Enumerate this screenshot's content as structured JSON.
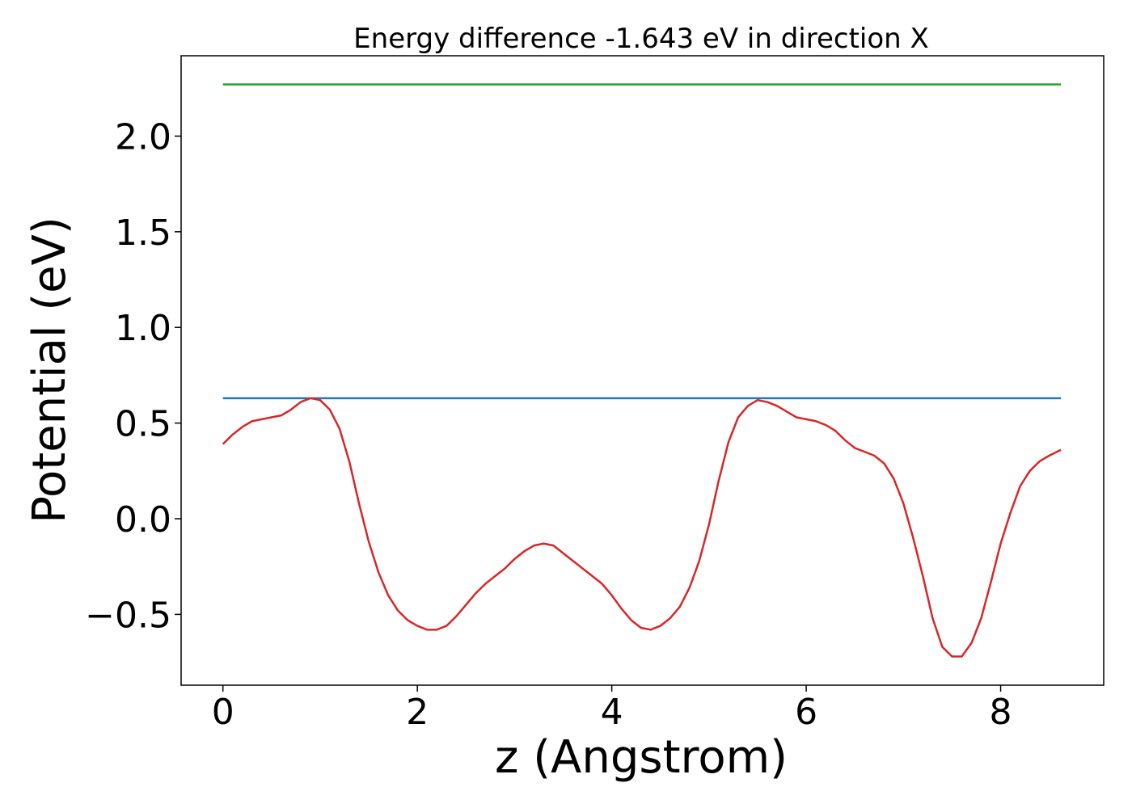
{
  "chart_data": {
    "type": "line",
    "title": "Energy difference -1.643 eV in direction X",
    "xlabel": "z (Angstrom)",
    "ylabel": "Potential (eV)",
    "xlim": [
      -0.43,
      9.06
    ],
    "ylim": [
      -0.87,
      2.42
    ],
    "xticks": [
      0,
      2,
      4,
      6,
      8
    ],
    "xtick_labels": [
      "0",
      "2",
      "4",
      "6",
      "8"
    ],
    "yticks": [
      -0.5,
      0.0,
      0.5,
      1.0,
      1.5,
      2.0
    ],
    "ytick_labels": [
      "−0.5",
      "0.0",
      "0.5",
      "1.0",
      "1.5",
      "2.0"
    ],
    "grid": false,
    "series": [
      {
        "color": "#2ca02c",
        "x": [
          0,
          8.62
        ],
        "y": [
          2.27,
          2.27
        ]
      },
      {
        "color": "#1f77b4",
        "x": [
          0,
          8.62
        ],
        "y": [
          0.63,
          0.63
        ]
      },
      {
        "color": "#d62728",
        "x": [
          0,
          0.1,
          0.2,
          0.3,
          0.4,
          0.5,
          0.6,
          0.7,
          0.8,
          0.9,
          1.0,
          1.1,
          1.2,
          1.3,
          1.4,
          1.5,
          1.6,
          1.7,
          1.8,
          1.9,
          2.0,
          2.1,
          2.2,
          2.3,
          2.4,
          2.5,
          2.6,
          2.7,
          2.8,
          2.9,
          3.0,
          3.1,
          3.2,
          3.3,
          3.4,
          3.5,
          3.6,
          3.7,
          3.8,
          3.9,
          4.0,
          4.1,
          4.2,
          4.3,
          4.4,
          4.5,
          4.6,
          4.7,
          4.8,
          4.9,
          5.0,
          5.1,
          5.2,
          5.3,
          5.4,
          5.5,
          5.6,
          5.7,
          5.8,
          5.9,
          6.0,
          6.1,
          6.2,
          6.3,
          6.4,
          6.5,
          6.6,
          6.7,
          6.8,
          6.9,
          7.0,
          7.1,
          7.2,
          7.3,
          7.4,
          7.5,
          7.6,
          7.7,
          7.8,
          7.9,
          8.0,
          8.1,
          8.2,
          8.3,
          8.4,
          8.5,
          8.62
        ],
        "y": [
          0.39,
          0.44,
          0.48,
          0.51,
          0.52,
          0.53,
          0.54,
          0.57,
          0.61,
          0.63,
          0.62,
          0.57,
          0.47,
          0.3,
          0.08,
          -0.12,
          -0.28,
          -0.4,
          -0.48,
          -0.53,
          -0.56,
          -0.58,
          -0.58,
          -0.56,
          -0.51,
          -0.45,
          -0.39,
          -0.34,
          -0.3,
          -0.26,
          -0.21,
          -0.17,
          -0.14,
          -0.13,
          -0.14,
          -0.18,
          -0.22,
          -0.26,
          -0.3,
          -0.34,
          -0.4,
          -0.47,
          -0.53,
          -0.57,
          -0.58,
          -0.56,
          -0.52,
          -0.46,
          -0.36,
          -0.22,
          -0.03,
          0.2,
          0.4,
          0.53,
          0.59,
          0.62,
          0.61,
          0.59,
          0.56,
          0.53,
          0.52,
          0.51,
          0.49,
          0.46,
          0.41,
          0.37,
          0.35,
          0.33,
          0.29,
          0.21,
          0.08,
          -0.1,
          -0.3,
          -0.52,
          -0.67,
          -0.72,
          -0.72,
          -0.65,
          -0.52,
          -0.33,
          -0.13,
          0.03,
          0.17,
          0.25,
          0.3,
          0.33,
          0.36
        ]
      }
    ]
  }
}
